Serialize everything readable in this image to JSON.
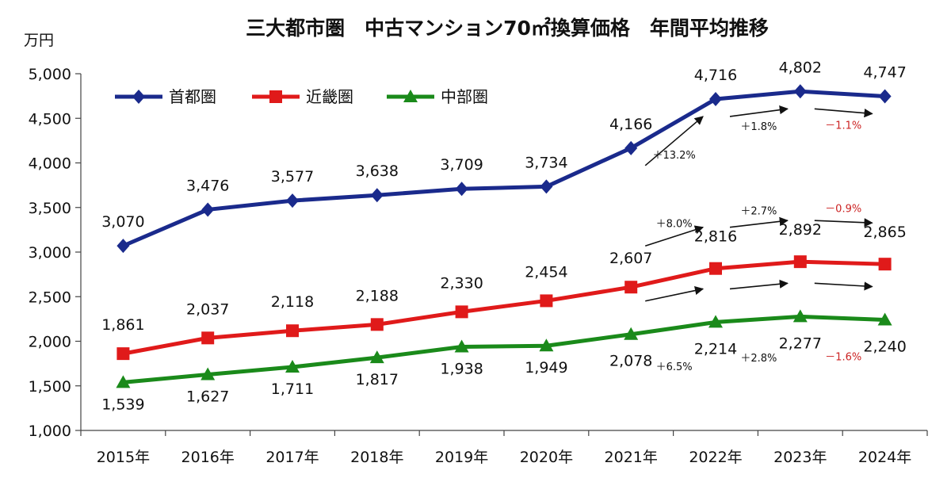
{
  "chart_data": {
    "type": "line",
    "title": "三大都市圏　中古マンション70㎡換算価格　年間平均推移",
    "ylabel": "万円",
    "categories": [
      "2015年",
      "2016年",
      "2017年",
      "2018年",
      "2019年",
      "2020年",
      "2021年",
      "2022年",
      "2023年",
      "2024年"
    ],
    "ylim": [
      1000,
      5000
    ],
    "yticks": [
      "1,000",
      "1,500",
      "2,000",
      "2,500",
      "3,000",
      "3,500",
      "4,000",
      "4,500",
      "5,000"
    ],
    "grid": false,
    "legend_position": "top-left",
    "series": [
      {
        "name": "首都圏",
        "color": "#1a2a8c",
        "marker": "diamond",
        "values": [
          3070,
          3476,
          3577,
          3638,
          3709,
          3734,
          4166,
          4716,
          4802,
          4747
        ],
        "labels": [
          "3,070",
          "3,476",
          "3,577",
          "3,638",
          "3,709",
          "3,734",
          "4,166",
          "4,716",
          "4,802",
          "4,747"
        ]
      },
      {
        "name": "近畿圏",
        "color": "#e01a1a",
        "marker": "square",
        "values": [
          1861,
          2037,
          2118,
          2188,
          2330,
          2454,
          2607,
          2816,
          2892,
          2865
        ],
        "labels": [
          "1,861",
          "2,037",
          "2,118",
          "2,188",
          "2,330",
          "2,454",
          "2,607",
          "2,816",
          "2,892",
          "2,865"
        ]
      },
      {
        "name": "中部圏",
        "color": "#1a8a1a",
        "marker": "triangle",
        "values": [
          1539,
          1627,
          1711,
          1817,
          1938,
          1949,
          2078,
          2214,
          2277,
          2240
        ],
        "labels": [
          "1,539",
          "1,627",
          "1,711",
          "1,817",
          "1,938",
          "1,949",
          "2,078",
          "2,214",
          "2,277",
          "2,240"
        ]
      }
    ],
    "annotations": [
      {
        "series": "首都圏",
        "from": "2021年",
        "to": "2022年",
        "text": "＋13.2%",
        "color": "#111111"
      },
      {
        "series": "首都圏",
        "from": "2022年",
        "to": "2023年",
        "text": "＋1.8%",
        "color": "#111111"
      },
      {
        "series": "首都圏",
        "from": "2023年",
        "to": "2024年",
        "text": "－1.1%",
        "color": "#cc2222"
      },
      {
        "series": "近畿圏",
        "from": "2021年",
        "to": "2022年",
        "text": "＋8.0%",
        "color": "#111111"
      },
      {
        "series": "近畿圏",
        "from": "2022年",
        "to": "2023年",
        "text": "＋2.7%",
        "color": "#111111"
      },
      {
        "series": "近畿圏",
        "from": "2023年",
        "to": "2024年",
        "text": "－0.9%",
        "color": "#cc2222"
      },
      {
        "series": "中部圏",
        "from": "2021年",
        "to": "2022年",
        "text": "＋6.5%",
        "color": "#111111"
      },
      {
        "series": "中部圏",
        "from": "2022年",
        "to": "2023年",
        "text": "＋2.8%",
        "color": "#111111"
      },
      {
        "series": "中部圏",
        "from": "2023年",
        "to": "2024年",
        "text": "－1.6%",
        "color": "#cc2222"
      }
    ]
  }
}
